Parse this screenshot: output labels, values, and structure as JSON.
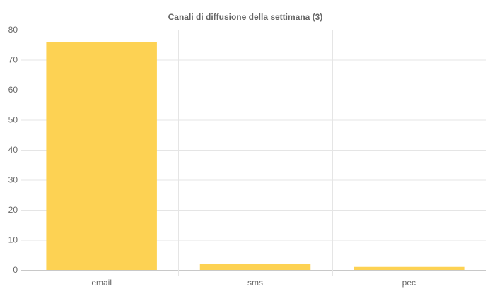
{
  "chart_data": {
    "type": "bar",
    "title": "Canali di diffusione della settimana (3)",
    "categories": [
      "email",
      "sms",
      "pec"
    ],
    "values": [
      76,
      2,
      1
    ],
    "ylim": [
      0,
      80
    ],
    "yticks": [
      0,
      10,
      20,
      30,
      40,
      50,
      60,
      70,
      80
    ],
    "grid": true,
    "legend": "none",
    "bar_color": "#fdd253",
    "title_color": "#666666",
    "tick_label_color": "#666666",
    "grid_color": "#e5e5e5"
  }
}
